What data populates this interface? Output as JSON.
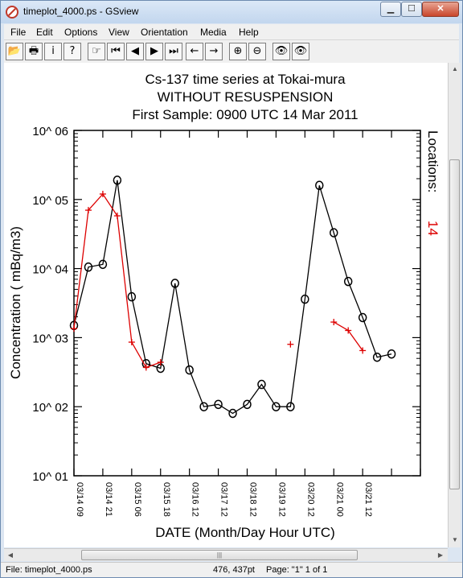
{
  "window": {
    "title": "timeplot_4000.ps - GSview"
  },
  "menu": [
    "File",
    "Edit",
    "Options",
    "View",
    "Orientation",
    "Media",
    "Help"
  ],
  "toolbar": [
    {
      "name": "open-icon",
      "glyph": "📂"
    },
    {
      "name": "print-icon",
      "glyph": "🖶"
    },
    {
      "name": "info-icon",
      "glyph": "i"
    },
    {
      "name": "help-icon",
      "glyph": "?"
    },
    {
      "name": "goto-page-icon",
      "glyph": "☞"
    },
    {
      "name": "first-page-icon",
      "glyph": "⏮"
    },
    {
      "name": "prev-page-icon",
      "glyph": "◀"
    },
    {
      "name": "next-page-icon",
      "glyph": "▶"
    },
    {
      "name": "last-page-icon",
      "glyph": "⏭"
    },
    {
      "name": "back-icon",
      "glyph": "←"
    },
    {
      "name": "forward-icon",
      "glyph": "→"
    },
    {
      "name": "zoom-in-icon",
      "glyph": "⊕"
    },
    {
      "name": "zoom-out-icon",
      "glyph": "⊖"
    },
    {
      "name": "text-search-icon",
      "glyph": "👁"
    },
    {
      "name": "text-search-next-icon",
      "glyph": "👁"
    }
  ],
  "chart_data": {
    "type": "line",
    "title_lines": [
      "Cs-137 time series at Tokai-mura",
      "WITHOUT RESUSPENSION",
      "First Sample: 0900 UTC 14 Mar 2011"
    ],
    "xlabel": "DATE (Month/Day Hour UTC)",
    "ylabel": "Concentration ( mBq/m3)",
    "yscale": "log",
    "ylim": [
      10,
      1000000
    ],
    "ytick_labels": [
      "10^ 01",
      "10^ 02",
      "10^ 03",
      "10^ 04",
      "10^ 05",
      "10^ 06"
    ],
    "ytick_values": [
      10,
      100,
      1000,
      10000,
      100000,
      1000000
    ],
    "xlim": [
      0,
      24
    ],
    "xtick_positions": [
      0,
      2,
      4,
      6,
      8,
      10,
      12,
      14,
      16,
      18,
      20,
      22,
      24
    ],
    "xtick_labels": [
      {
        "pos": 0,
        "label": "03/14 09"
      },
      {
        "pos": 2,
        "label": "03/14 21"
      },
      {
        "pos": 4,
        "label": "03/15 06"
      },
      {
        "pos": 6,
        "label": "03/15 18"
      },
      {
        "pos": 8,
        "label": "03/16 12"
      },
      {
        "pos": 10,
        "label": "03/17 12"
      },
      {
        "pos": 12,
        "label": "03/18 12"
      },
      {
        "pos": 14,
        "label": "03/19 12"
      },
      {
        "pos": 16,
        "label": "03/20 12"
      },
      {
        "pos": 18,
        "label": "03/21 00"
      },
      {
        "pos": 20,
        "label": "03/21 12"
      }
    ],
    "locations_label": "Locations:",
    "locations_value": "14",
    "series": [
      {
        "color": "#000000",
        "marker": "circle",
        "points": [
          [
            0,
            1500
          ],
          [
            1,
            10500
          ],
          [
            2,
            11500
          ],
          [
            3,
            190000
          ],
          [
            4,
            3900
          ],
          [
            5,
            420
          ],
          [
            6,
            360
          ],
          [
            7,
            6100
          ],
          [
            8,
            340
          ],
          [
            9,
            100
          ],
          [
            10,
            108
          ],
          [
            11,
            80
          ],
          [
            12,
            108
          ],
          [
            13,
            210
          ],
          [
            14,
            100
          ],
          [
            15,
            100
          ],
          [
            16,
            3600
          ],
          [
            17,
            160000
          ],
          [
            18,
            33000
          ],
          [
            19,
            6500
          ],
          [
            20,
            1950
          ],
          [
            21,
            520
          ],
          [
            22,
            580
          ]
        ]
      },
      {
        "color": "#dd0000",
        "marker": "plus",
        "segments": [
          [
            [
              0,
              1350
            ],
            [
              1,
              70000
            ],
            [
              2,
              120000
            ],
            [
              3,
              58000
            ],
            [
              4,
              860
            ],
            [
              5,
              370
            ],
            [
              6,
              440
            ]
          ],
          [
            [
              15,
              800
            ]
          ],
          [
            [
              18,
              1680
            ],
            [
              19,
              1270
            ],
            [
              20,
              650
            ]
          ]
        ]
      }
    ]
  },
  "status": {
    "file": "File: timeplot_4000.ps",
    "coords": "476, 437pt",
    "page": "Page: \"1\"  1 of 1"
  }
}
